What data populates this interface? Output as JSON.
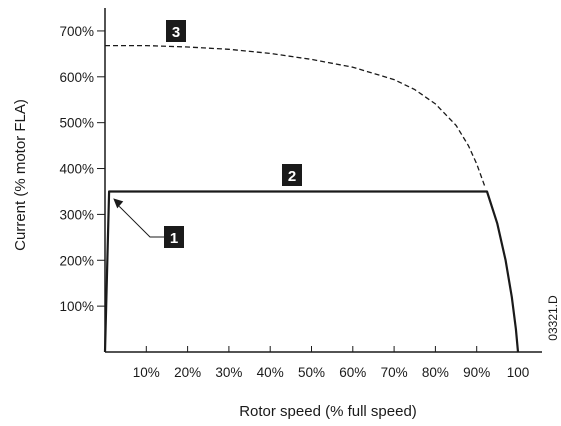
{
  "chart_data": {
    "type": "line",
    "title": "",
    "xlabel": "Rotor speed (% full speed)",
    "ylabel": "Current (% motor FLA)",
    "xlim": [
      0,
      100
    ],
    "ylim": [
      0,
      750
    ],
    "x_tick_labels": [
      "10%",
      "20%",
      "30%",
      "40%",
      "50%",
      "60%",
      "70%",
      "80%",
      "90%",
      "100"
    ],
    "x_tick_values": [
      10,
      20,
      30,
      40,
      50,
      60,
      70,
      80,
      90,
      100
    ],
    "y_tick_labels": [
      "100%",
      "200%",
      "300%",
      "400%",
      "500%",
      "600%",
      "700%"
    ],
    "y_tick_values": [
      100,
      200,
      300,
      400,
      500,
      600,
      700
    ],
    "grid": false,
    "legend": "none",
    "series": [
      {
        "marker": "3",
        "style": "dashed",
        "x": [
          0,
          10,
          20,
          30,
          40,
          50,
          60,
          70,
          75,
          80,
          85,
          88,
          90,
          92
        ],
        "y": [
          668,
          668,
          665,
          660,
          651,
          638,
          621,
          594,
          572,
          541,
          494,
          450,
          410,
          360
        ]
      },
      {
        "marker": "2",
        "style": "solid",
        "x": [
          0,
          1,
          92.5,
          95,
          97,
          98.5,
          99.5,
          100
        ],
        "y": [
          0,
          350,
          350,
          280,
          200,
          120,
          50,
          0
        ]
      }
    ],
    "annotations": [
      {
        "label": "1",
        "points_to": {
          "x": 2,
          "y": 348
        }
      }
    ],
    "image_code": "03321.D",
    "line_color": "#1a1a1a",
    "marker_fill": "#1a1a1a"
  }
}
